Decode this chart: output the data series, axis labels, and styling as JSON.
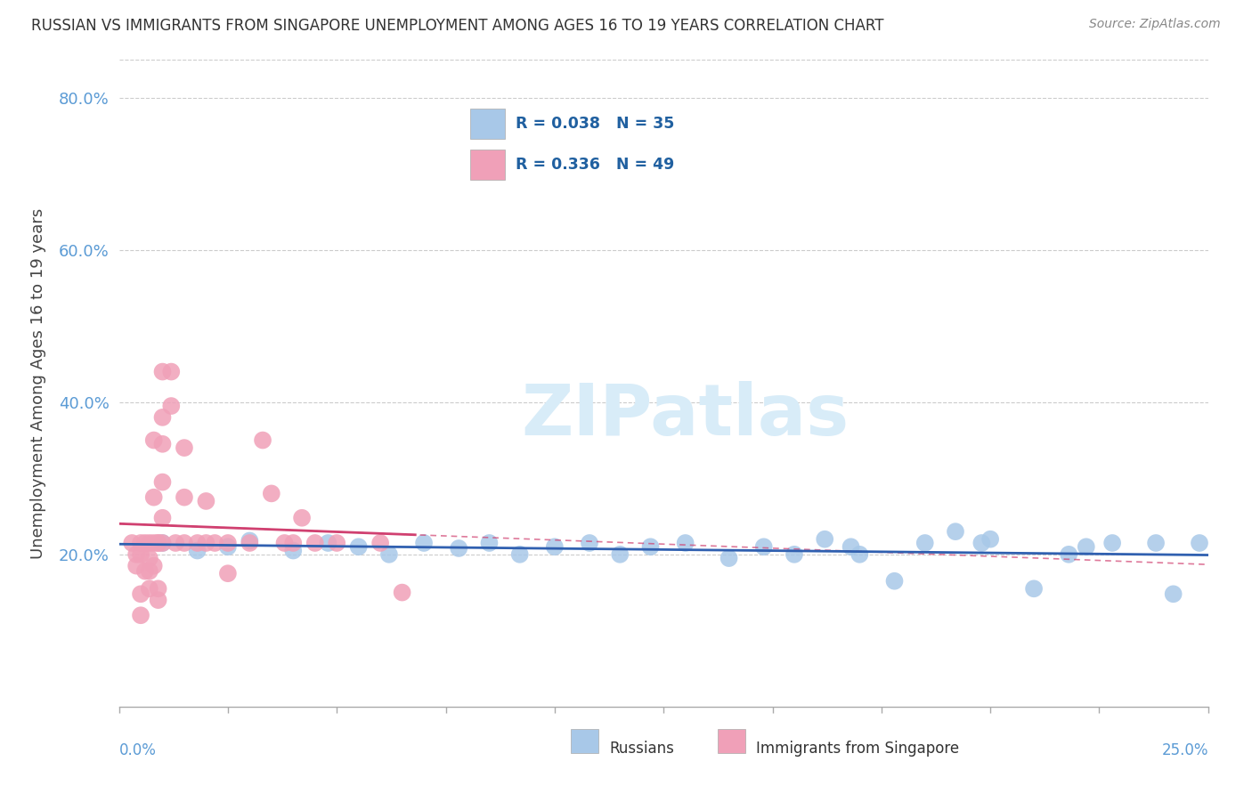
{
  "title": "RUSSIAN VS IMMIGRANTS FROM SINGAPORE UNEMPLOYMENT AMONG AGES 16 TO 19 YEARS CORRELATION CHART",
  "source": "Source: ZipAtlas.com",
  "ylabel": "Unemployment Among Ages 16 to 19 years",
  "xlim": [
    0.0,
    0.25
  ],
  "ylim": [
    0.0,
    0.85
  ],
  "yticks": [
    0.2,
    0.4,
    0.6,
    0.8
  ],
  "ytick_labels": [
    "20.0%",
    "40.0%",
    "60.0%",
    "80.0%"
  ],
  "russian_color": "#A8C8E8",
  "singapore_color": "#F0A0B8",
  "russian_line_color": "#3060B0",
  "singapore_line_color": "#D04070",
  "watermark_color": "#D8ECF8",
  "background_color": "#FFFFFF",
  "grid_color": "#CCCCCC",
  "russians_x": [
    0.01,
    0.018,
    0.025,
    0.03,
    0.04,
    0.048,
    0.055,
    0.062,
    0.07,
    0.078,
    0.085,
    0.092,
    0.1,
    0.108,
    0.115,
    0.122,
    0.13,
    0.14,
    0.148,
    0.155,
    0.162,
    0.17,
    0.178,
    0.185,
    0.192,
    0.2,
    0.21,
    0.218,
    0.222,
    0.228,
    0.238,
    0.242,
    0.248,
    0.198,
    0.168
  ],
  "russians_y": [
    0.215,
    0.205,
    0.21,
    0.218,
    0.205,
    0.215,
    0.21,
    0.2,
    0.215,
    0.208,
    0.215,
    0.2,
    0.21,
    0.215,
    0.2,
    0.21,
    0.215,
    0.195,
    0.21,
    0.2,
    0.22,
    0.2,
    0.165,
    0.215,
    0.23,
    0.22,
    0.155,
    0.2,
    0.21,
    0.215,
    0.215,
    0.148,
    0.215,
    0.215,
    0.21
  ],
  "singapore_x": [
    0.003,
    0.004,
    0.004,
    0.005,
    0.005,
    0.005,
    0.005,
    0.006,
    0.006,
    0.007,
    0.007,
    0.007,
    0.007,
    0.008,
    0.008,
    0.008,
    0.008,
    0.009,
    0.009,
    0.009,
    0.009,
    0.01,
    0.01,
    0.01,
    0.01,
    0.01,
    0.01,
    0.012,
    0.012,
    0.013,
    0.015,
    0.015,
    0.015,
    0.018,
    0.02,
    0.02,
    0.022,
    0.025,
    0.025,
    0.03,
    0.033,
    0.035,
    0.038,
    0.04,
    0.042,
    0.045,
    0.05,
    0.06,
    0.065
  ],
  "singapore_y": [
    0.215,
    0.2,
    0.185,
    0.148,
    0.12,
    0.215,
    0.2,
    0.215,
    0.178,
    0.215,
    0.195,
    0.178,
    0.155,
    0.35,
    0.275,
    0.215,
    0.185,
    0.215,
    0.155,
    0.14,
    0.215,
    0.44,
    0.38,
    0.345,
    0.295,
    0.248,
    0.215,
    0.44,
    0.395,
    0.215,
    0.215,
    0.34,
    0.275,
    0.215,
    0.215,
    0.27,
    0.215,
    0.215,
    0.175,
    0.215,
    0.35,
    0.28,
    0.215,
    0.215,
    0.248,
    0.215,
    0.215,
    0.215,
    0.15
  ]
}
